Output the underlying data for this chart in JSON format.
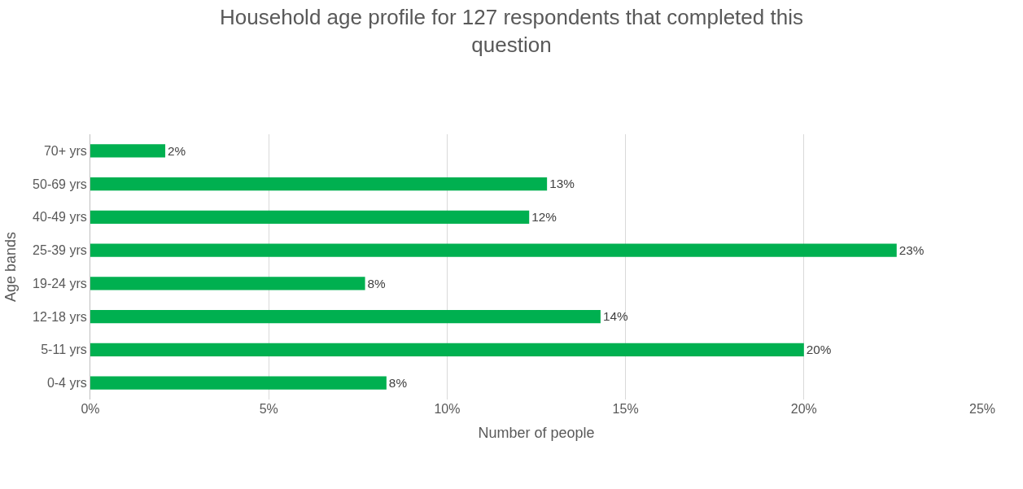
{
  "chart_data": {
    "type": "bar",
    "orientation": "horizontal",
    "title": "Household age profile for 127 respondents that completed this question",
    "xlabel": "Number of people",
    "ylabel": "Age bands",
    "categories": [
      "70+ yrs",
      "50-69 yrs",
      "40-49 yrs",
      "25-39 yrs",
      "19-24 yrs",
      "12-18 yrs",
      "5-11 yrs",
      "0-4 yrs"
    ],
    "values": [
      2.1,
      12.8,
      12.3,
      22.6,
      7.7,
      14.3,
      20.0,
      8.3
    ],
    "value_labels": [
      "2%",
      "13%",
      "12%",
      "23%",
      "8%",
      "14%",
      "20%",
      "8%"
    ],
    "color": "#00b050",
    "xlim": [
      0,
      25
    ],
    "xticks": [
      {
        "value": 0,
        "label": "0%"
      },
      {
        "value": 5,
        "label": "5%"
      },
      {
        "value": 10,
        "label": "10%"
      },
      {
        "value": 15,
        "label": "15%"
      },
      {
        "value": 20,
        "label": "20%"
      },
      {
        "value": 25,
        "label": "25%"
      }
    ],
    "grid": "x"
  }
}
